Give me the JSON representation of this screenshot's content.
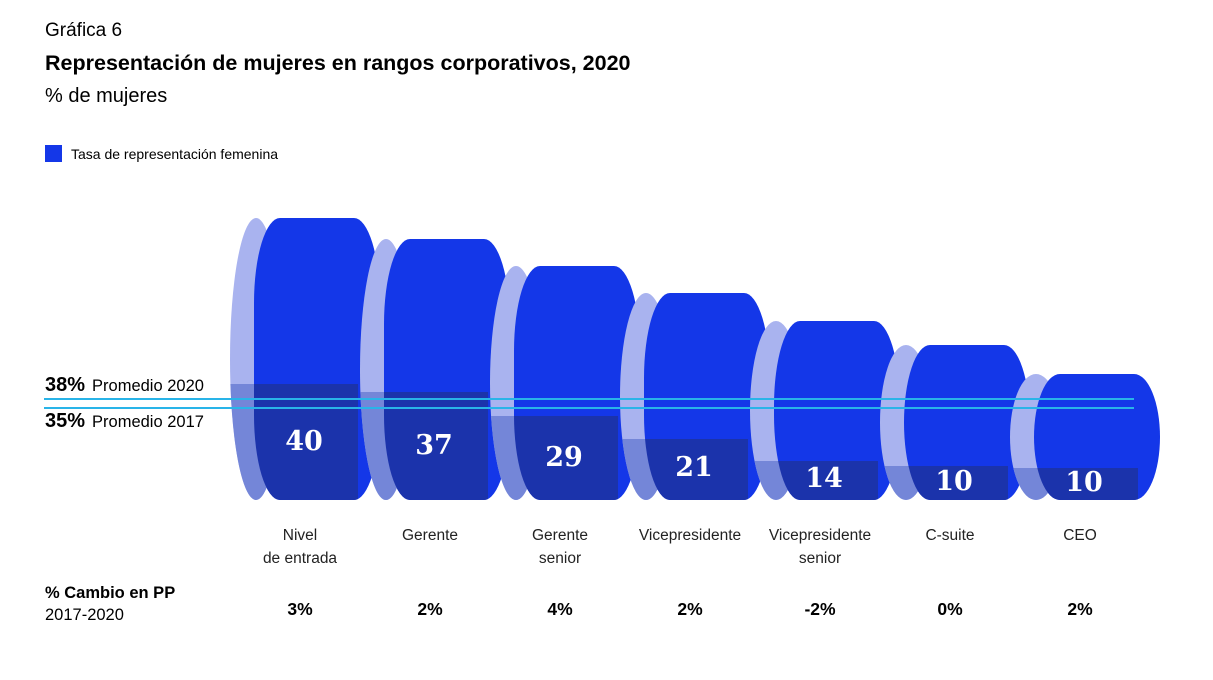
{
  "header": {
    "eyebrow": "Gráfica 6",
    "title": "Representación de mujeres en rangos corporativos, 2020",
    "subtitle": "% de mujeres"
  },
  "legend": {
    "label": "Tasa de representación femenina"
  },
  "reference_lines": [
    {
      "value_label": "38%",
      "name": "Promedio 2020"
    },
    {
      "value_label": "35%",
      "name": "Promedio 2017"
    }
  ],
  "footer_row": {
    "title_bold": "% Cambio en PP",
    "title_sub": "2017-2020"
  },
  "chart_data": {
    "type": "bar",
    "title": "Representación de mujeres en rangos corporativos, 2020",
    "ylabel": "% de mujeres",
    "legend_entries": [
      "Tasa de representación femenina"
    ],
    "categories": [
      "Nivel\nde entrada",
      "Gerente",
      "Gerente\nsenior",
      "Vicepresidente",
      "Vicepresidente\nsenior",
      "C-suite",
      "CEO"
    ],
    "values": [
      40,
      37,
      29,
      21,
      14,
      10,
      10
    ],
    "changes_pp": [
      "3%",
      "2%",
      "4%",
      "2%",
      "-2%",
      "0%",
      "2%"
    ],
    "reference_lines": [
      {
        "label": "Promedio 2020",
        "value": 38
      },
      {
        "label": "Promedio 2017",
        "value": 35
      }
    ],
    "ylim": [
      0,
      40
    ],
    "grid": false,
    "legend_position": "top-left",
    "colors": {
      "bar_body": "#1437e8",
      "bar_body_shade": "#1b33ab",
      "cap_light": "#a9b3ef",
      "cap_shade": "#7486d8",
      "reference_line": "#29b4e8",
      "value_text": "#ffffff"
    }
  }
}
